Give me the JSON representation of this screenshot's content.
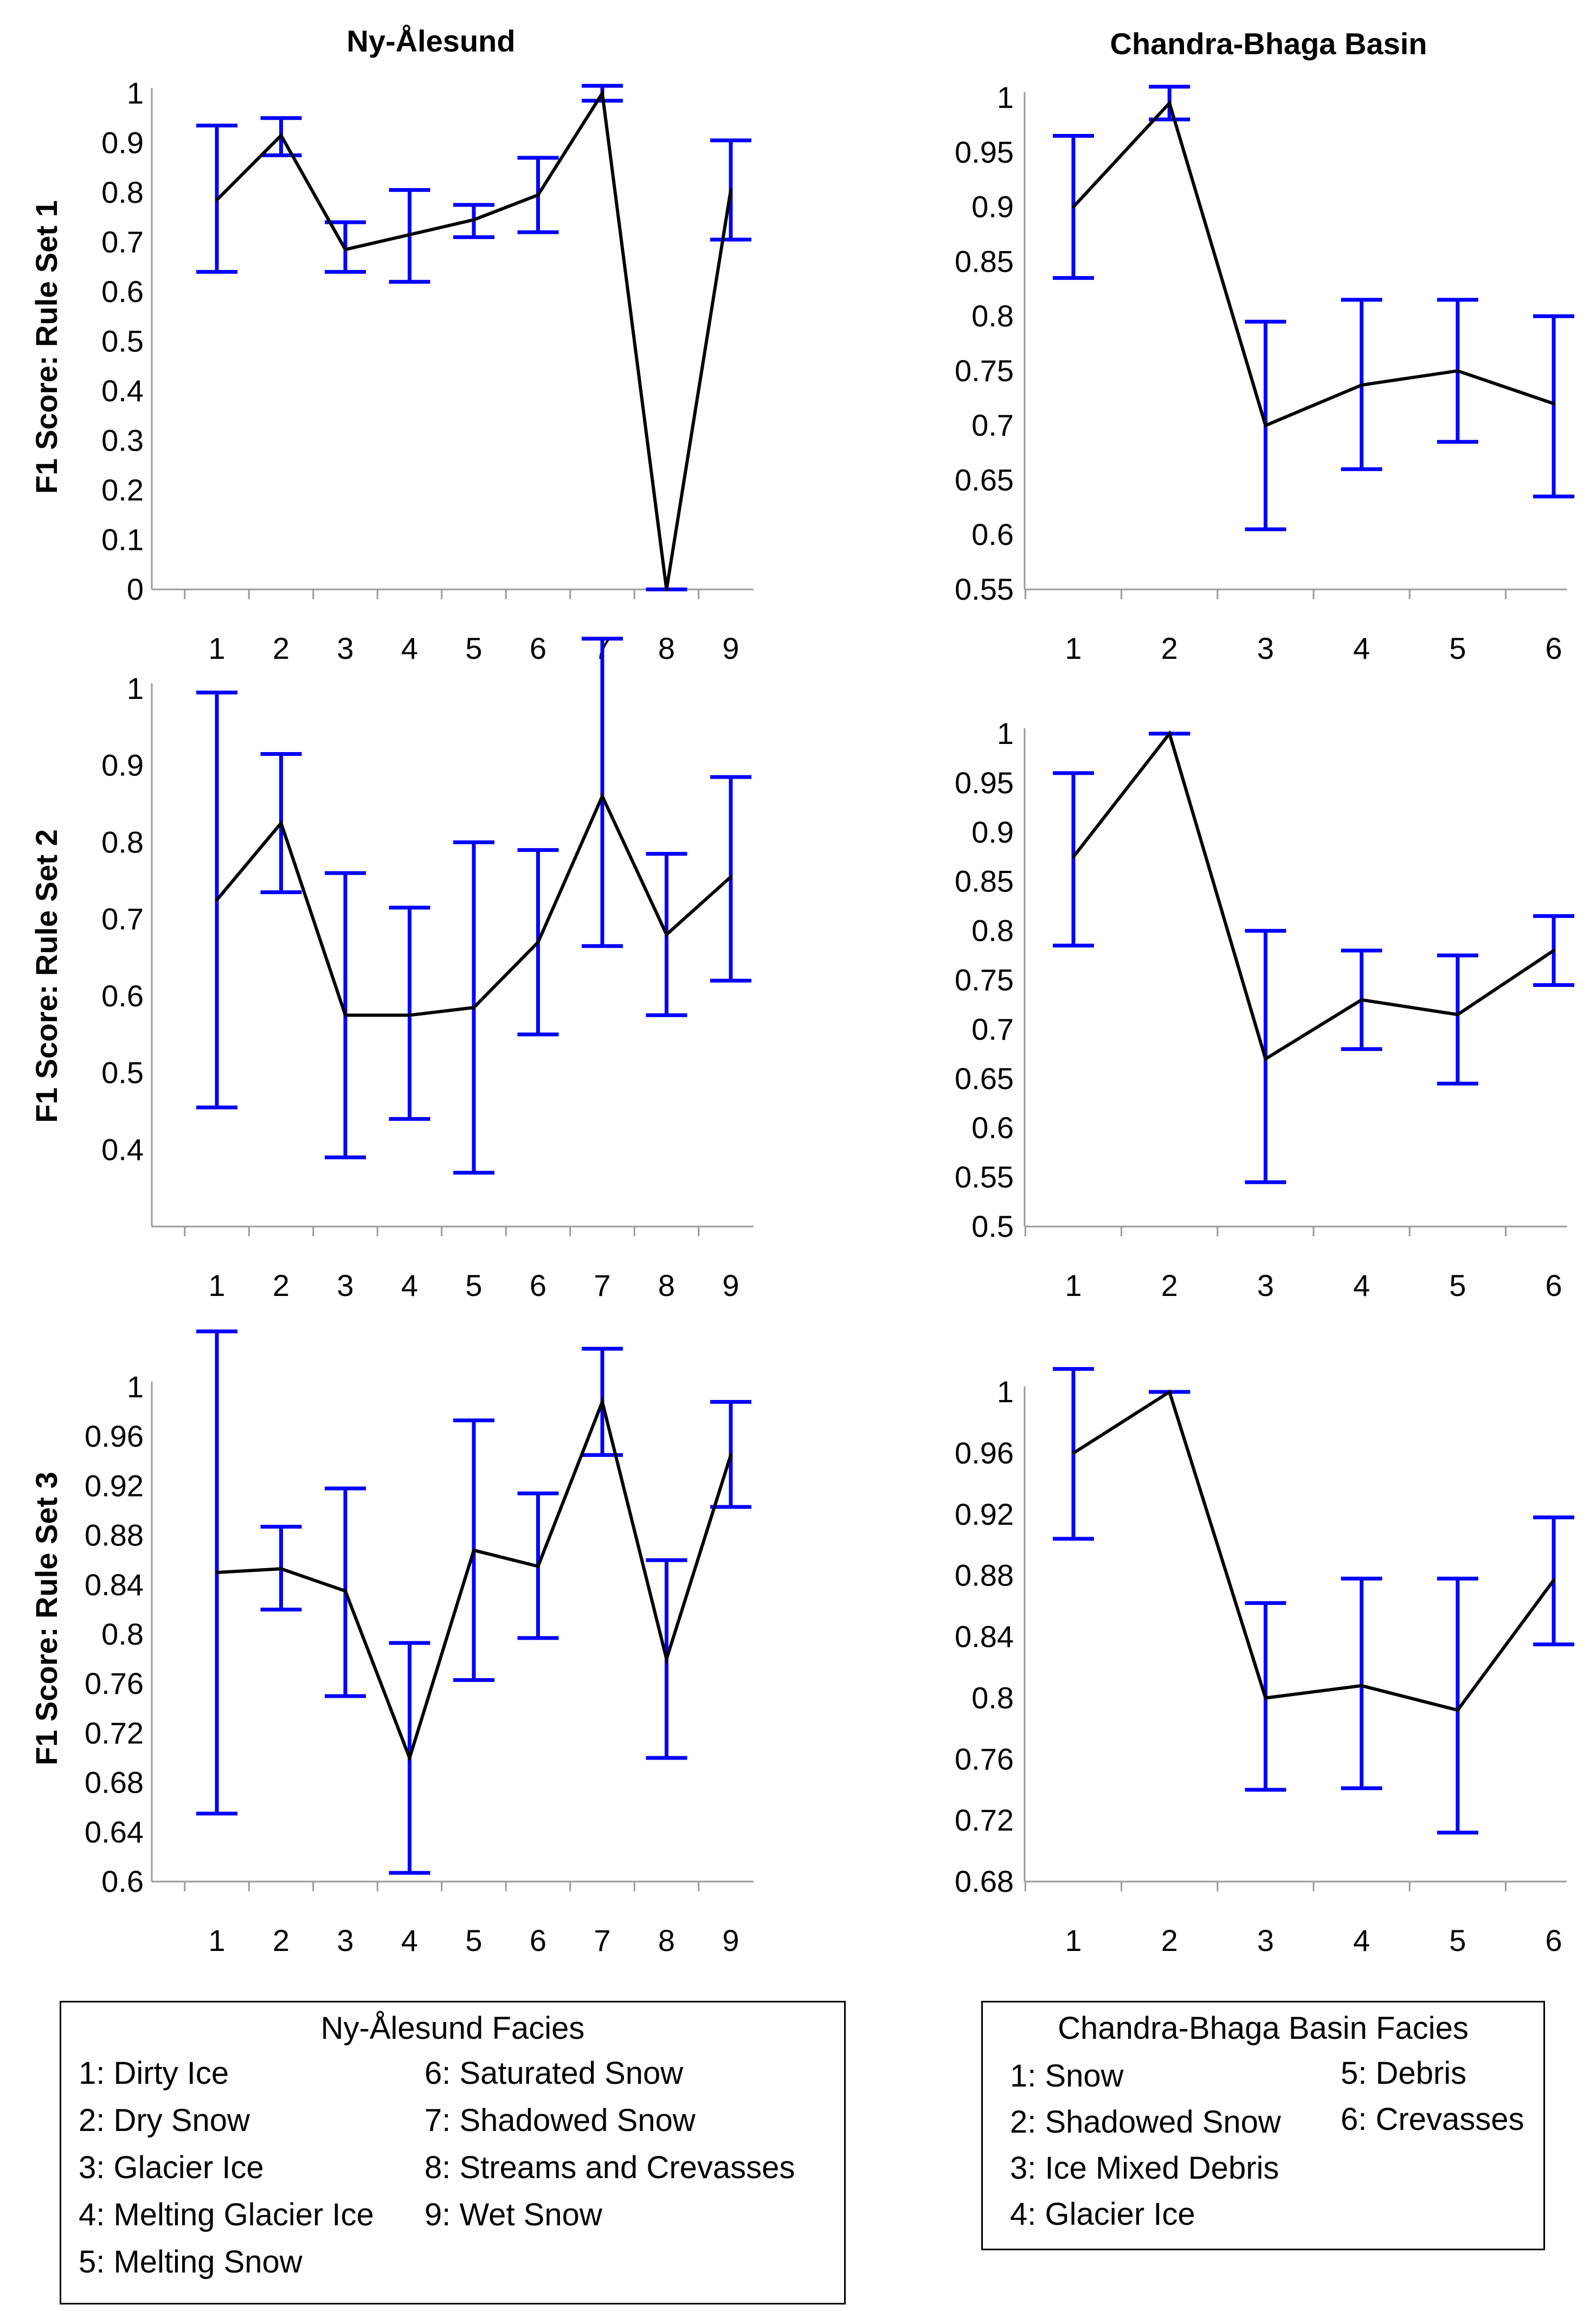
{
  "figure": {
    "columns": [
      "Ny-Ålesund",
      "Chandra-Bhaga Basin"
    ],
    "row_labels": [
      "F1 Score: Rule Set 1",
      "F1 Score: Rule Set 2",
      "F1 Score: Rule Set 3"
    ]
  },
  "colors": {
    "line": "#000000",
    "error_bar": "#0000ff",
    "axis": "#9a9a9a"
  },
  "chart_data": [
    {
      "type": "line",
      "title": "Ny-Ålesund",
      "ylabel": "F1 Score: Rule Set 1",
      "categories": [
        "1",
        "2",
        "3",
        "4",
        "5",
        "6",
        "7",
        "8",
        "9"
      ],
      "values": [
        0.785,
        0.915,
        0.685,
        0.715,
        0.745,
        0.795,
        1.0,
        0.0,
        0.805
      ],
      "err_low": [
        0.64,
        0.875,
        0.64,
        0.62,
        0.71,
        0.72,
        0.985,
        0.0,
        0.705
      ],
      "err_high": [
        0.935,
        0.95,
        0.74,
        0.805,
        0.775,
        0.87,
        1.015,
        0.0,
        0.905
      ],
      "ylim": [
        0,
        1
      ],
      "yticks": [
        "0",
        "0.1",
        "0.2",
        "0.3",
        "0.4",
        "0.5",
        "0.6",
        "0.7",
        "0.8",
        "0.9",
        "1"
      ],
      "tick_values": [
        0,
        0.1,
        0.2,
        0.3,
        0.4,
        0.5,
        0.6,
        0.7,
        0.8,
        0.9,
        1
      ]
    },
    {
      "type": "line",
      "title": "Chandra-Bhaga Basin",
      "ylabel": "",
      "categories": [
        "1",
        "2",
        "3",
        "4",
        "5",
        "6"
      ],
      "values": [
        0.9,
        0.995,
        0.7,
        0.737,
        0.75,
        0.72
      ],
      "err_low": [
        0.835,
        0.98,
        0.605,
        0.66,
        0.685,
        0.635
      ],
      "err_high": [
        0.965,
        1.01,
        0.795,
        0.815,
        0.815,
        0.8
      ],
      "ylim": [
        0.55,
        1
      ],
      "yticks": [
        "0.55",
        "0.6",
        "0.65",
        "0.7",
        "0.75",
        "0.8",
        "0.85",
        "0.9",
        "0.95",
        "1"
      ],
      "tick_values": [
        0.55,
        0.6,
        0.65,
        0.7,
        0.75,
        0.8,
        0.85,
        0.9,
        0.95,
        1
      ]
    },
    {
      "type": "line",
      "title": "",
      "ylabel": "F1 Score: Rule Set 2",
      "categories": [
        "1",
        "2",
        "3",
        "4",
        "5",
        "6",
        "7",
        "8",
        "9"
      ],
      "values": [
        0.725,
        0.825,
        0.575,
        0.575,
        0.585,
        0.67,
        0.86,
        0.68,
        0.755
      ],
      "err_low": [
        0.455,
        0.735,
        0.39,
        0.44,
        0.37,
        0.55,
        0.665,
        0.575,
        0.62
      ],
      "err_high": [
        0.995,
        0.915,
        0.76,
        0.715,
        0.8,
        0.79,
        1.065,
        0.785,
        0.885
      ],
      "ylim": [
        0.3,
        1
      ],
      "yticks": [
        "0.4",
        "0.5",
        "0.6",
        "0.7",
        "0.8",
        "0.9",
        "1"
      ],
      "tick_values": [
        0.4,
        0.5,
        0.6,
        0.7,
        0.8,
        0.9,
        1
      ]
    },
    {
      "type": "line",
      "title": "",
      "ylabel": "",
      "categories": [
        "1",
        "2",
        "3",
        "4",
        "5",
        "6"
      ],
      "values": [
        0.875,
        1.0,
        0.67,
        0.73,
        0.715,
        0.78
      ],
      "err_low": [
        0.785,
        1.0,
        0.545,
        0.68,
        0.645,
        0.745
      ],
      "err_high": [
        0.96,
        1.0,
        0.8,
        0.78,
        0.775,
        0.815
      ],
      "ylim": [
        0.5,
        1
      ],
      "yticks": [
        "0.5",
        "0.55",
        "0.6",
        "0.65",
        "0.7",
        "0.75",
        "0.8",
        "0.85",
        "0.9",
        "0.95",
        "1"
      ],
      "tick_values": [
        0.5,
        0.55,
        0.6,
        0.65,
        0.7,
        0.75,
        0.8,
        0.85,
        0.9,
        0.95,
        1
      ]
    },
    {
      "type": "line",
      "title": "",
      "ylabel": "F1 Score: Rule Set 3",
      "categories": [
        "1",
        "2",
        "3",
        "4",
        "5",
        "6",
        "7",
        "8",
        "9"
      ],
      "values": [
        0.85,
        0.853,
        0.835,
        0.7,
        0.868,
        0.855,
        0.988,
        0.78,
        0.945
      ],
      "err_low": [
        0.655,
        0.82,
        0.75,
        0.607,
        0.763,
        0.797,
        0.945,
        0.7,
        0.903
      ],
      "err_high": [
        1.045,
        0.887,
        0.918,
        0.793,
        0.973,
        0.914,
        1.031,
        0.86,
        0.988
      ],
      "ylim": [
        0.6,
        1
      ],
      "yticks": [
        "0.6",
        "0.64",
        "0.68",
        "0.72",
        "0.76",
        "0.8",
        "0.84",
        "0.88",
        "0.92",
        "0.96",
        "1"
      ],
      "tick_values": [
        0.6,
        0.64,
        0.68,
        0.72,
        0.76,
        0.8,
        0.84,
        0.88,
        0.92,
        0.96,
        1
      ]
    },
    {
      "type": "line",
      "title": "",
      "ylabel": "",
      "categories": [
        "1",
        "2",
        "3",
        "4",
        "5",
        "6"
      ],
      "values": [
        0.96,
        1.0,
        0.8,
        0.808,
        0.792,
        0.877
      ],
      "err_low": [
        0.904,
        1.0,
        0.74,
        0.741,
        0.712,
        0.835
      ],
      "err_high": [
        1.015,
        1.0,
        0.862,
        0.878,
        0.878,
        0.918
      ],
      "ylim": [
        0.68,
        1
      ],
      "yticks": [
        "0.68",
        "0.72",
        "0.76",
        "0.8",
        "0.84",
        "0.88",
        "0.92",
        "0.96",
        "1"
      ],
      "tick_values": [
        0.68,
        0.72,
        0.76,
        0.8,
        0.84,
        0.88,
        0.92,
        0.96,
        1
      ]
    }
  ],
  "legends": {
    "ny": {
      "title": "Ny-Ålesund Facies",
      "items": [
        "1: Dirty Ice",
        "2: Dry Snow",
        "3: Glacier Ice",
        "4: Melting Glacier Ice",
        "5: Melting Snow",
        "6: Saturated Snow",
        "7: Shadowed Snow",
        "8: Streams and Crevasses",
        "9: Wet Snow"
      ]
    },
    "cb": {
      "title": "Chandra-Bhaga Basin Facies",
      "items": [
        "1: Snow",
        "2: Shadowed Snow",
        "3: Ice Mixed Debris",
        "4: Glacier Ice",
        "5: Debris",
        "6: Crevasses"
      ]
    }
  }
}
